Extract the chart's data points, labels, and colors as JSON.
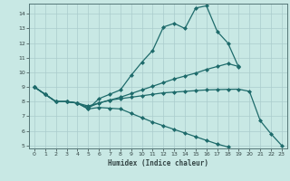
{
  "xlabel": "Humidex (Indice chaleur)",
  "bg_color": "#c8e8e4",
  "line_color": "#1e6b6b",
  "grid_color": "#aacccc",
  "xlim": [
    -0.5,
    23.5
  ],
  "ylim": [
    4.8,
    14.7
  ],
  "yticks": [
    5,
    6,
    7,
    8,
    9,
    10,
    11,
    12,
    13,
    14
  ],
  "xticks": [
    0,
    1,
    2,
    3,
    4,
    5,
    6,
    7,
    8,
    9,
    10,
    11,
    12,
    13,
    14,
    15,
    16,
    17,
    18,
    19,
    20,
    21,
    22,
    23
  ],
  "series": [
    {
      "x": [
        0,
        1,
        2,
        3,
        4,
        5,
        6,
        7,
        8,
        9,
        10,
        11,
        12,
        13,
        14,
        15,
        16,
        17,
        18,
        19
      ],
      "y": [
        9.0,
        8.5,
        8.0,
        8.0,
        7.9,
        7.5,
        8.2,
        8.5,
        8.8,
        9.8,
        10.7,
        11.5,
        13.1,
        13.35,
        13.0,
        14.4,
        14.55,
        12.8,
        12.0,
        10.35
      ]
    },
    {
      "x": [
        0,
        1,
        2,
        3,
        4,
        5,
        6,
        7,
        8,
        9,
        10,
        11,
        12,
        13,
        14,
        15,
        16,
        17,
        18,
        19
      ],
      "y": [
        9.0,
        8.5,
        8.0,
        8.0,
        7.9,
        7.6,
        7.9,
        8.1,
        8.3,
        8.55,
        8.8,
        9.05,
        9.3,
        9.55,
        9.75,
        9.95,
        10.2,
        10.4,
        10.6,
        10.4
      ]
    },
    {
      "x": [
        0,
        1,
        2,
        3,
        4,
        5,
        6,
        7,
        8,
        9,
        10,
        11,
        12,
        13,
        14,
        15,
        16,
        17,
        18,
        19,
        20,
        21,
        22,
        23
      ],
      "y": [
        9.0,
        8.5,
        8.0,
        8.0,
        7.9,
        7.7,
        7.9,
        8.1,
        8.2,
        8.3,
        8.4,
        8.5,
        8.6,
        8.65,
        8.7,
        8.75,
        8.8,
        8.82,
        8.84,
        8.85,
        8.7,
        6.7,
        5.8,
        5.0
      ]
    },
    {
      "x": [
        0,
        1,
        2,
        3,
        4,
        5,
        6,
        7,
        8,
        9,
        10,
        11,
        12,
        13,
        14,
        15,
        16,
        17,
        18,
        19,
        20,
        21,
        22,
        23
      ],
      "y": [
        9.0,
        8.5,
        8.0,
        8.0,
        7.9,
        7.5,
        7.6,
        7.55,
        7.5,
        7.2,
        6.9,
        6.6,
        6.35,
        6.1,
        5.85,
        5.6,
        5.35,
        5.1,
        4.9,
        null,
        null,
        null,
        null,
        null
      ]
    }
  ]
}
